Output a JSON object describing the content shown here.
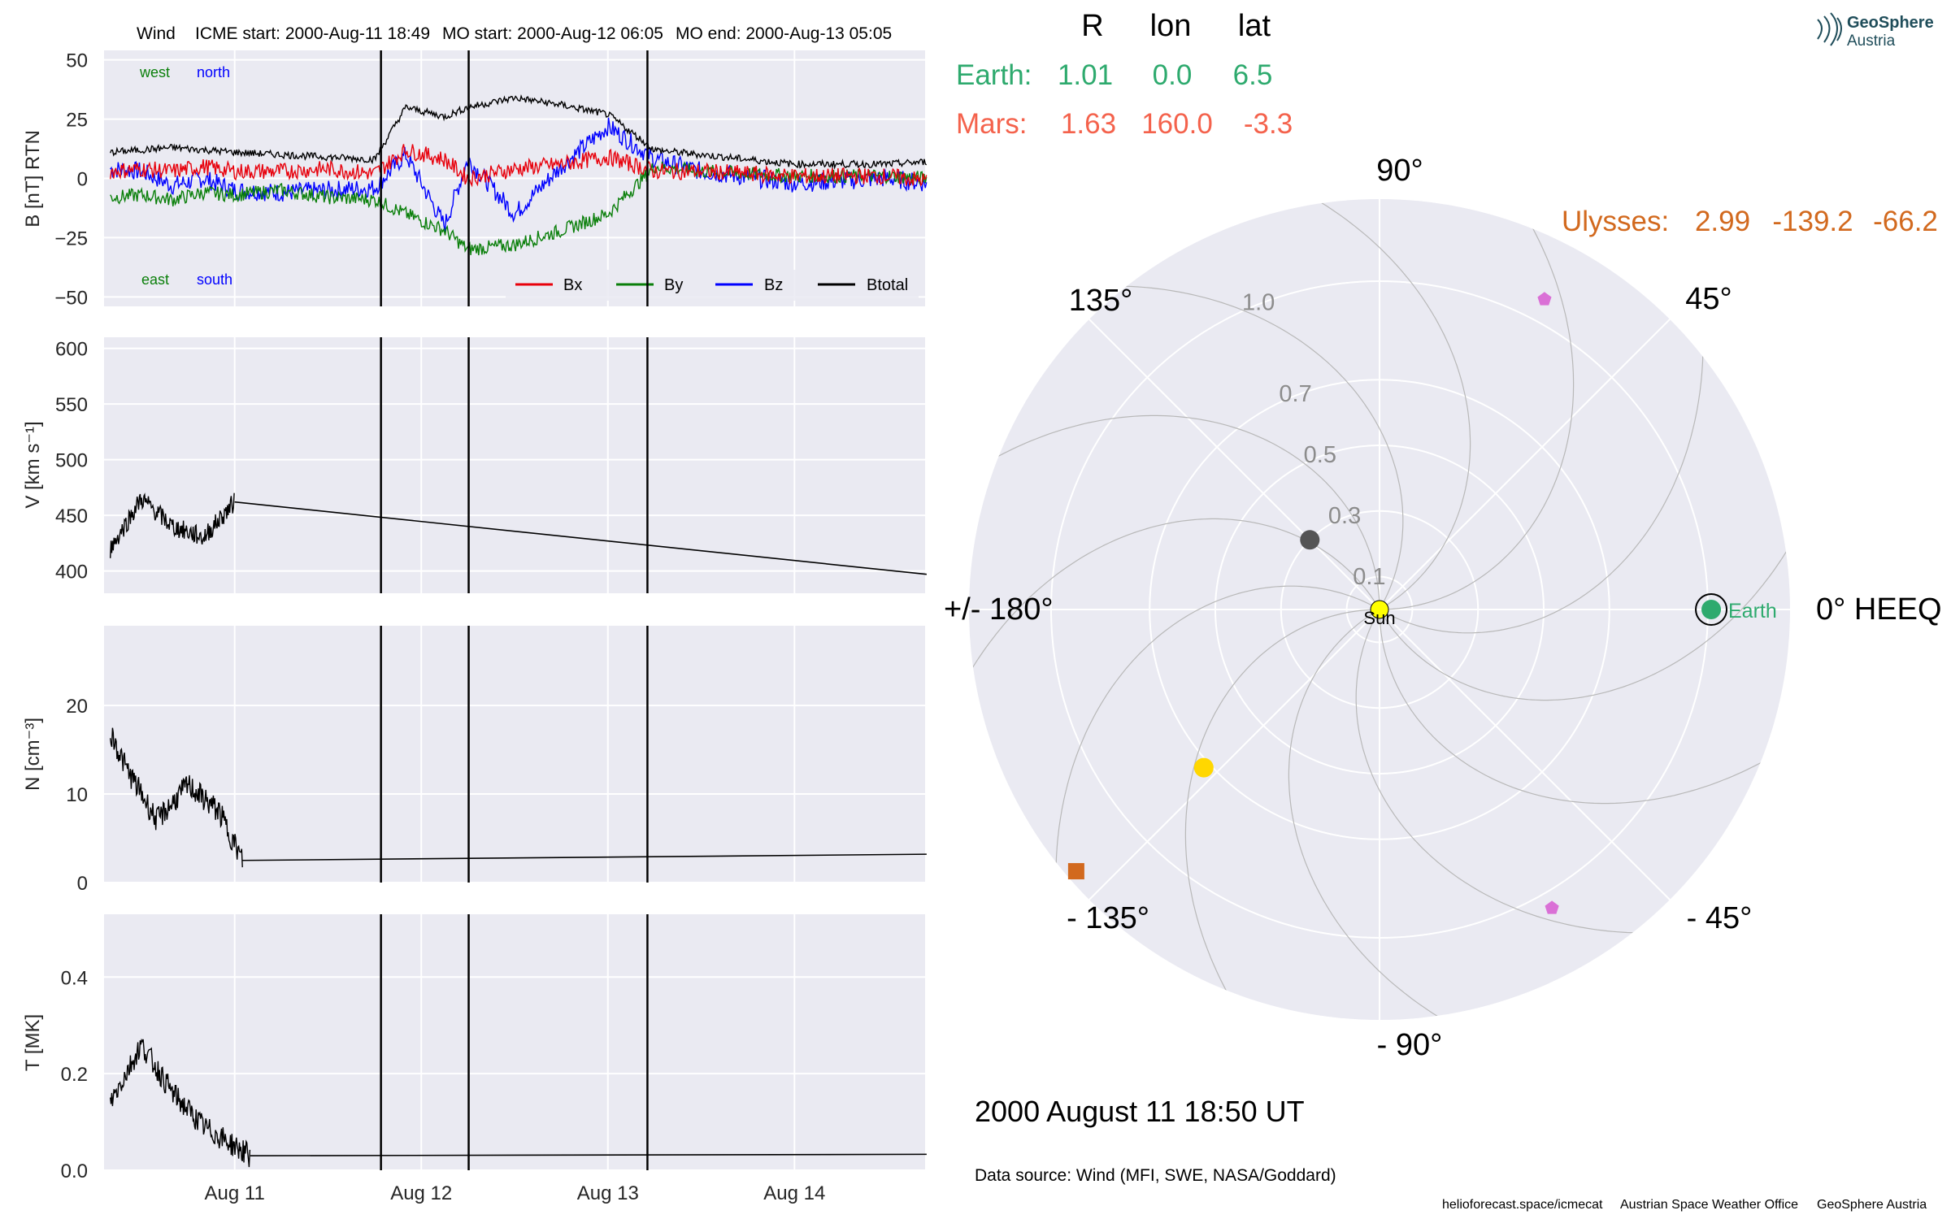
{
  "header": {
    "mission": "Wind",
    "icme_start": "ICME start: 2000-Aug-11 18:49",
    "mo_start": "MO start: 2000-Aug-12 06:05",
    "mo_end": "MO end: 2000-Aug-13 05:05"
  },
  "logo": {
    "line1": "GeoSphere",
    "line2": "Austria"
  },
  "positions": {
    "columns": [
      "R",
      "lon",
      "lat"
    ],
    "earth": {
      "label": "Earth:",
      "R": "1.01",
      "lon": "0.0",
      "lat": "6.5",
      "color": "#2eaa6e"
    },
    "mars": {
      "label": "Mars:",
      "R": "1.63",
      "lon": "160.0",
      "lat": "-3.3",
      "color": "#f4624c"
    },
    "ulysses": {
      "label": "Ulysses:",
      "R": "2.99",
      "lon": "-139.2",
      "lat": "-66.2",
      "color": "#d2691e"
    }
  },
  "polar": {
    "angle_labels": {
      "a0": "0° HEEQ",
      "a45": "45°",
      "a90": "90°",
      "a135": "135°",
      "a180": "+/- 180°",
      "am135": "- 135°",
      "am90": "- 90°",
      "am45": "- 45°"
    },
    "radial_labels": [
      "0.1",
      "0.3",
      "0.5",
      "0.7",
      "1.0"
    ],
    "sun_label": "Sun",
    "earth_label": "Earth",
    "datetime": "2000 August 11  18:50 UT",
    "data_source": "Data source: Wind (MFI, SWE, NASA/Goddard)"
  },
  "footer": {
    "link": "helioforecast.space/icmecat",
    "office": "Austrian Space Weather Office",
    "org": "GeoSphere Austria"
  },
  "x_axis": {
    "ticks": [
      "Aug 11",
      "Aug 12",
      "Aug 13",
      "Aug 14"
    ],
    "range_days": [
      10.3,
      14.7
    ],
    "tick_days": [
      11,
      12,
      13,
      14
    ],
    "event_lines_days": [
      11.784,
      12.254,
      13.212
    ]
  },
  "panels": {
    "b": {
      "ylabel": "B [nT] RTN",
      "ticks": [
        "50",
        "25",
        "0",
        "−25",
        "−50"
      ],
      "tick_values": [
        50,
        25,
        0,
        -25,
        -50
      ],
      "ylim": [
        -54,
        54
      ],
      "annotations": {
        "west": "west",
        "north": "north",
        "east": "east",
        "south": "south"
      },
      "legend": {
        "bx": "Bx",
        "by": "By",
        "bz": "Bz",
        "btot": "Btotal"
      }
    },
    "v": {
      "ylabel": "V [km s⁻¹]",
      "ticks": [
        "600",
        "550",
        "500",
        "450",
        "400"
      ],
      "tick_values": [
        600,
        550,
        500,
        450,
        400
      ],
      "ylim": [
        380,
        610
      ]
    },
    "n": {
      "ylabel": "N [cm⁻³]",
      "ticks": [
        "20",
        "10",
        "0"
      ],
      "tick_values": [
        20,
        10,
        0
      ],
      "ylim": [
        0,
        29
      ]
    },
    "t": {
      "ylabel": "T [MK]",
      "ticks": [
        "0.4",
        "0.2",
        "0.0"
      ],
      "tick_values": [
        0.4,
        0.2,
        0.0
      ],
      "ylim": [
        0,
        0.53
      ]
    }
  },
  "chart_data": [
    {
      "type": "line",
      "title": "Wind    ICME start: 2000-Aug-11 18:49   MO start: 2000-Aug-12 06:05   MO end: 2000-Aug-13 05:05",
      "xlabel": "",
      "ylabel": "B [nT] RTN",
      "x": [
        "Aug 10 08:00",
        "Aug 10 12:00",
        "Aug 10 16:00",
        "Aug 10 20:00",
        "Aug 11 00:00",
        "Aug 11 06:00",
        "Aug 11 12:00",
        "Aug 11 18:00",
        "Aug 11 22:00",
        "Aug 12 03:00",
        "Aug 12 06:00",
        "Aug 12 12:00",
        "Aug 12 18:00",
        "Aug 13 00:00",
        "Aug 13 06:00",
        "Aug 13 12:00",
        "Aug 14 00:00",
        "Aug 14 12:00",
        "Aug 14 17:00"
      ],
      "series": [
        {
          "name": "Btotal",
          "color": "#000000",
          "values": [
            11,
            12,
            13,
            12,
            11,
            10,
            9,
            8,
            30,
            26,
            30,
            34,
            31,
            27,
            12,
            10,
            6,
            6,
            7
          ]
        },
        {
          "name": "Bx",
          "color": "#e8000b",
          "values": [
            3,
            4,
            3,
            5,
            3,
            3,
            4,
            2,
            12,
            8,
            0,
            4,
            6,
            9,
            3,
            3,
            1,
            1,
            -1
          ]
        },
        {
          "name": "By",
          "color": "#0a7f0a",
          "values": [
            -8,
            -7,
            -9,
            -6,
            -7,
            -5,
            -8,
            -9,
            -15,
            -22,
            -30,
            -28,
            -22,
            -15,
            5,
            3,
            1,
            1,
            0
          ]
        },
        {
          "name": "Bz",
          "color": "#0000ff",
          "values": [
            4,
            3,
            -3,
            0,
            -5,
            -6,
            -5,
            -4,
            10,
            -20,
            8,
            -15,
            5,
            22,
            8,
            3,
            -2,
            0,
            -2
          ]
        }
      ],
      "ylim": [
        -54,
        54
      ],
      "grid": true,
      "legend_position": "lower-right"
    },
    {
      "type": "line",
      "ylabel": "V [km s⁻¹]",
      "x": [
        "Aug 10 08:00",
        "Aug 10 12:00",
        "Aug 10 16:00",
        "Aug 10 20:00",
        "Aug 11 00:00",
        "Aug 14 17:00"
      ],
      "values": [
        420,
        465,
        440,
        430,
        462,
        397
      ],
      "ylim": [
        380,
        610
      ],
      "grid": true
    },
    {
      "type": "line",
      "ylabel": "N [cm⁻³]",
      "x": [
        "Aug 10 08:00",
        "Aug 10 10:00",
        "Aug 10 14:00",
        "Aug 10 18:00",
        "Aug 10 22:00",
        "Aug 11 01:00",
        "Aug 14 17:00"
      ],
      "values": [
        17,
        13,
        7,
        11,
        8,
        2.5,
        3.2
      ],
      "ylim": [
        0,
        29
      ],
      "grid": true
    },
    {
      "type": "line",
      "ylabel": "T [MK]",
      "x": [
        "Aug 10 08:00",
        "Aug 10 12:00",
        "Aug 10 16:00",
        "Aug 10 20:00",
        "Aug 11 00:00",
        "Aug 11 02:00",
        "Aug 14 17:00"
      ],
      "values": [
        0.14,
        0.26,
        0.16,
        0.09,
        0.05,
        0.03,
        0.033
      ],
      "ylim": [
        0,
        0.53
      ],
      "grid": true
    },
    {
      "type": "scatter",
      "title": "2000 August 11  18:50 UT",
      "coordinate_system": "polar, 0° HEEQ, radial distance in AU",
      "rlim": [
        0,
        1.25
      ],
      "radial_ticks": [
        0.1,
        0.3,
        0.5,
        0.7,
        1.0
      ],
      "points": [
        {
          "name": "Sun",
          "r": 0.0,
          "lon_deg": 0,
          "marker": "circle",
          "color": "#ffff00"
        },
        {
          "name": "Earth",
          "r": 1.01,
          "lon_deg": 0.0,
          "marker": "circle",
          "color": "#2eaa6e"
        },
        {
          "name": "",
          "r": 0.3,
          "lon_deg": 135,
          "marker": "circle",
          "color": "#555555"
        },
        {
          "name": "",
          "r": 0.72,
          "lon_deg": -138,
          "marker": "circle",
          "color": "#ffd700"
        },
        {
          "name": "",
          "r": 1.22,
          "lon_deg": -139.2,
          "marker": "square",
          "color": "#d2691e"
        },
        {
          "name": "",
          "r": 1.07,
          "lon_deg": 62,
          "marker": "pentagon",
          "color": "#da70d6"
        },
        {
          "name": "",
          "r": 1.05,
          "lon_deg": -60,
          "marker": "pentagon",
          "color": "#da70d6"
        }
      ]
    }
  ]
}
